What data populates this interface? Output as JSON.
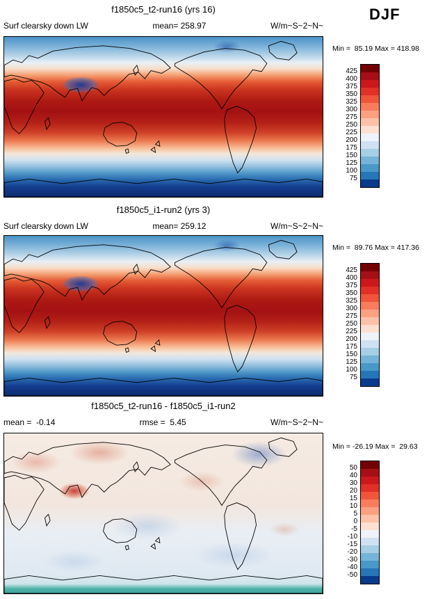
{
  "season": "DJF",
  "colors": {
    "scale": [
      "#730005",
      "#a50f15",
      "#cb181d",
      "#e13027",
      "#f0553b",
      "#fb7c5c",
      "#fca082",
      "#fcc2a9",
      "#fde0d2",
      "#eef3fb",
      "#cfe1f2",
      "#a6cee4",
      "#75b4d8",
      "#4a97c9",
      "#2676b8",
      "#0a3a8c"
    ]
  },
  "panels": [
    {
      "title": "f1850c5_t2-run16 (yrs 16)",
      "var_label": "Surf clearsky down LW",
      "mean_label": "mean= 258.97",
      "units_label": "W/m~S~2~N~",
      "minmax_label": "Min =  85.19 Max = 418.98",
      "colorbar_labels": [
        "425",
        "400",
        "375",
        "350",
        "325",
        "300",
        "275",
        "250",
        "225",
        "200",
        "175",
        "150",
        "125",
        "100",
        "75"
      ]
    },
    {
      "title": "f1850c5_i1-run2 (yrs 3)",
      "var_label": "Surf clearsky down LW",
      "mean_label": "mean= 259.12",
      "units_label": "W/m~S~2~N~",
      "minmax_label": "Min =  89.76 Max = 417.36",
      "colorbar_labels": [
        "425",
        "400",
        "375",
        "350",
        "325",
        "300",
        "275",
        "250",
        "225",
        "200",
        "175",
        "150",
        "125",
        "100",
        "75"
      ]
    },
    {
      "title": "f1850c5_t2-run16 - f1850c5_i1-run2",
      "mean_label": "mean =  -0.14",
      "rmse_label": "rmse =  5.45",
      "units_label": "W/m~S~2~N~",
      "minmax_label": "Min = -26.19 Max =  29.63",
      "colorbar_labels": [
        "50",
        "40",
        "30",
        "20",
        "15",
        "10",
        "5",
        "0",
        "-5",
        "-10",
        "-15",
        "-20",
        "-30",
        "-40",
        "-50"
      ]
    }
  ],
  "chart_data": [
    {
      "type": "heatmap",
      "title": "f1850c5_t2-run16 (yrs 16)",
      "variable": "Surf clearsky down LW",
      "season": "DJF",
      "units": "W/m~S~2~N~",
      "mean": 258.97,
      "min": 85.19,
      "max": 418.98,
      "colorbar_levels": [
        425,
        400,
        375,
        350,
        325,
        300,
        275,
        250,
        225,
        200,
        175,
        150,
        125,
        100,
        75
      ],
      "legend_position": "right"
    },
    {
      "type": "heatmap",
      "title": "f1850c5_i1-run2 (yrs 3)",
      "variable": "Surf clearsky down LW",
      "season": "DJF",
      "units": "W/m~S~2~N~",
      "mean": 259.12,
      "min": 89.76,
      "max": 417.36,
      "colorbar_levels": [
        425,
        400,
        375,
        350,
        325,
        300,
        275,
        250,
        225,
        200,
        175,
        150,
        125,
        100,
        75
      ],
      "legend_position": "right"
    },
    {
      "type": "heatmap",
      "title": "f1850c5_t2-run16 - f1850c5_i1-run2",
      "variable": "Surf clearsky down LW",
      "season": "DJF",
      "units": "W/m~S~2~N~",
      "mean": -0.14,
      "rmse": 5.45,
      "min": -26.19,
      "max": 29.63,
      "colorbar_levels": [
        50,
        40,
        30,
        20,
        15,
        10,
        5,
        0,
        -5,
        -10,
        -15,
        -20,
        -30,
        -40,
        -50
      ],
      "legend_position": "right"
    }
  ]
}
